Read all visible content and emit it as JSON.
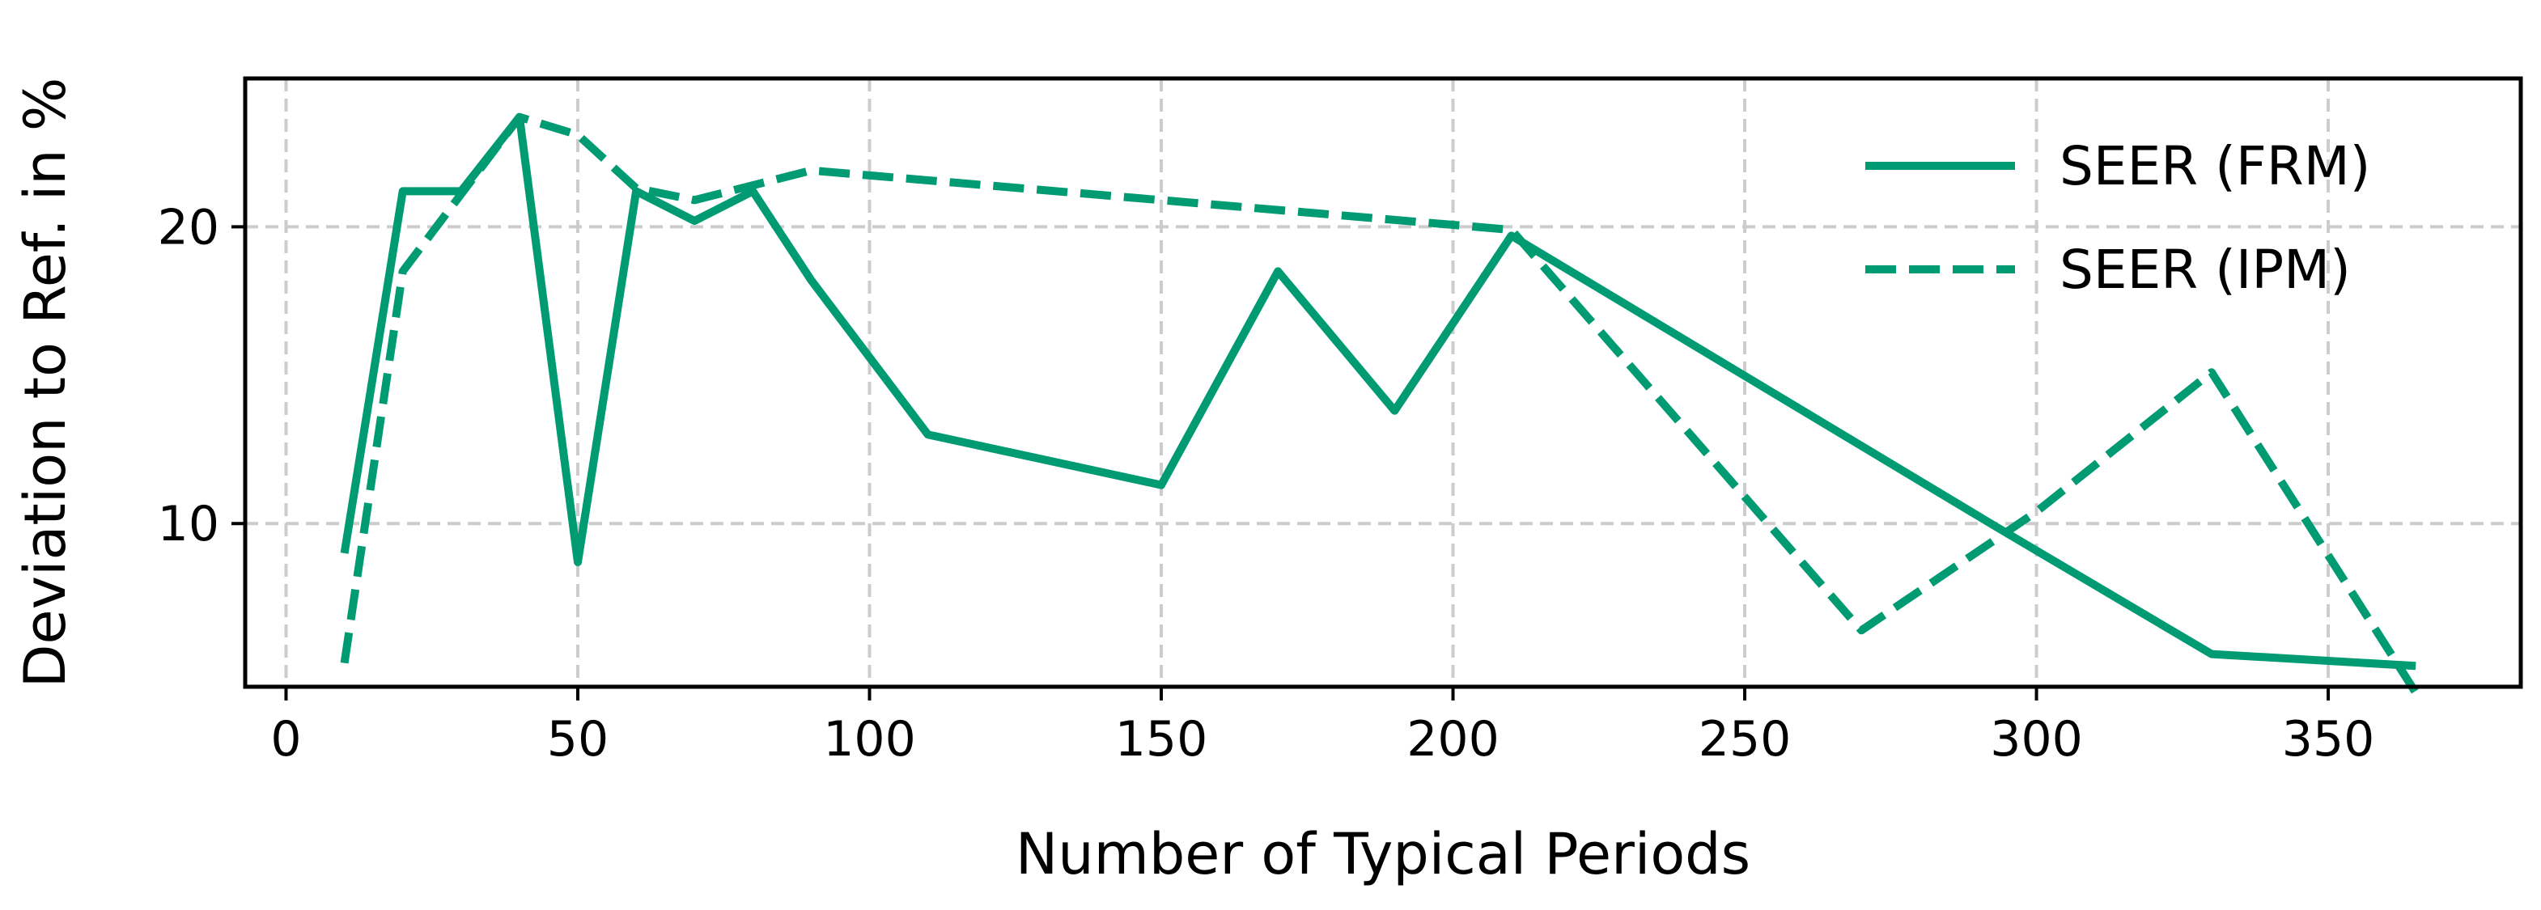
{
  "chart_data": {
    "type": "line",
    "title": "",
    "xlabel": "Number of Typical Periods",
    "ylabel": "Deviation to Ref. in %",
    "xlim": [
      -7,
      383
    ],
    "ylim": [
      4.5,
      25
    ],
    "xticks": [
      0,
      50,
      100,
      150,
      200,
      250,
      300,
      350
    ],
    "yticks": [
      10,
      20
    ],
    "grid": true,
    "legend_position": "upper right",
    "series": [
      {
        "name": "SEER (FRM)",
        "color": "#009b72",
        "line_style": "solid",
        "x": [
          10,
          20,
          30,
          40,
          50,
          60,
          70,
          80,
          90,
          110,
          150,
          170,
          190,
          210,
          293,
          330,
          365
        ],
        "y": [
          9.0,
          21.2,
          21.2,
          23.7,
          8.7,
          21.2,
          20.2,
          21.2,
          18.2,
          13.0,
          11.3,
          18.5,
          13.8,
          19.7,
          9.9,
          5.6,
          5.2
        ]
      },
      {
        "name": "SEER (IPM)",
        "color": "#009b72",
        "line_style": "dashed",
        "x": [
          10,
          20,
          40,
          50,
          60,
          70,
          80,
          90,
          210,
          270,
          300,
          330,
          365
        ],
        "y": [
          5.3,
          18.5,
          23.7,
          23.1,
          21.3,
          20.9,
          21.4,
          21.9,
          19.9,
          6.4,
          10.4,
          15.1,
          4.3
        ]
      }
    ]
  }
}
